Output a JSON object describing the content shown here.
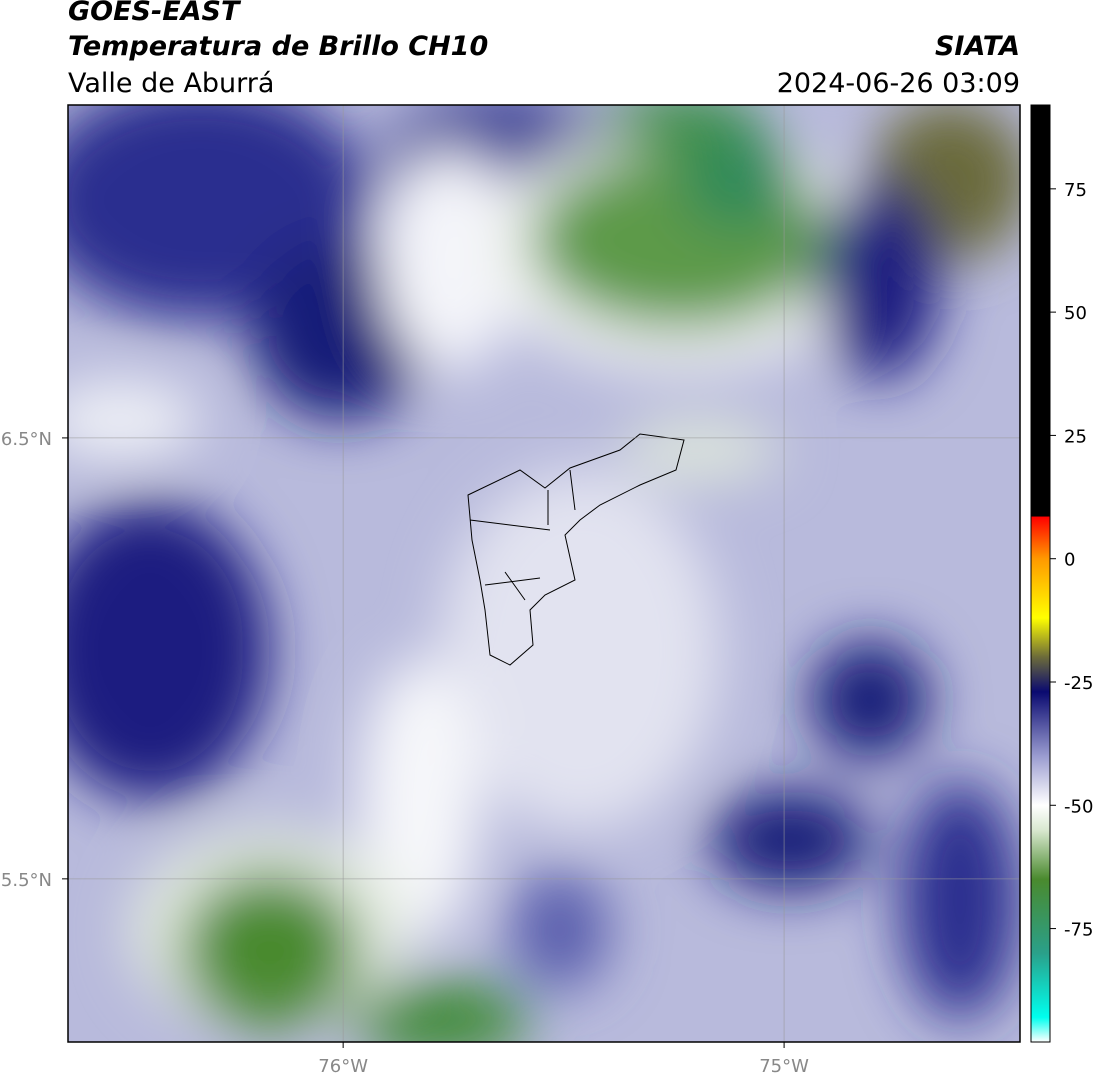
{
  "header": {
    "title": "GOES-EAST",
    "subtitle": "Temperatura de Brillo CH10",
    "region": "Valle de Aburrá",
    "source": "SIATA",
    "datetime": "2024-06-26 03:09"
  },
  "map": {
    "xlim": [
      -76.624,
      -74.465
    ],
    "ylim": [
      5.13,
      7.255
    ],
    "xticks": [
      {
        "value": -76,
        "label": "76°W"
      },
      {
        "value": -75,
        "label": "75°W"
      }
    ],
    "yticks": [
      {
        "value": 6.5,
        "label": "6.5°N"
      },
      {
        "value": 5.5,
        "label": "5.5°N"
      }
    ],
    "grid": true
  },
  "colorbar": {
    "lim": [
      -98,
      92
    ],
    "ticks": [
      75,
      50,
      25,
      0,
      -25,
      -50,
      -75
    ],
    "stops": [
      [
        -98,
        "#ffffff"
      ],
      [
        -93,
        "#00ffee"
      ],
      [
        -80,
        "#2aa08a"
      ],
      [
        -65,
        "#4a8a2e"
      ],
      [
        -55,
        "#d9e8d0"
      ],
      [
        -50,
        "#ffffff"
      ],
      [
        -40,
        "#9a9cd0"
      ],
      [
        -27,
        "#0a0a70"
      ],
      [
        -20,
        "#6b6a3a"
      ],
      [
        -12,
        "#ffff00"
      ],
      [
        0,
        "#ff9900"
      ],
      [
        8.5,
        "#ff0000"
      ],
      [
        8.6,
        "#000000"
      ],
      [
        92,
        "#000000"
      ]
    ]
  }
}
